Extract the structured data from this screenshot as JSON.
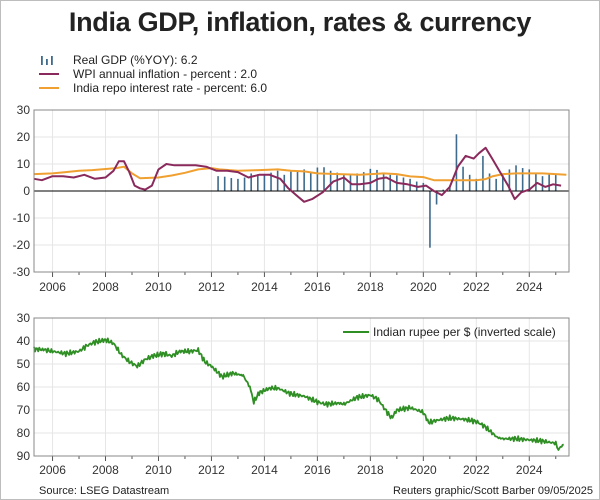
{
  "title": "India GDP, inflation, rates & currency",
  "source": "Source: LSEG Datastream",
  "credit": "Reuters graphic/Scott Barber 09/05/2025",
  "colors": {
    "gdp": "#3e6b8c",
    "wpi": "#8a2a5c",
    "repo": "#f0a030",
    "rupee": "#2f8f24",
    "zero": "#000000",
    "grid": "#e6e6e6"
  },
  "chart_data": [
    {
      "type": "bar+line",
      "panel": "top",
      "x_ticks": [
        "2006",
        "2008",
        "2010",
        "2012",
        "2014",
        "2016",
        "2018",
        "2020",
        "2022",
        "2024"
      ],
      "xlim": [
        2005.3,
        2025.5
      ],
      "ylim": [
        -30,
        30
      ],
      "y_ticks": [
        "30",
        "20",
        "10",
        "0",
        "-10",
        "-20",
        "-30"
      ],
      "grid": true,
      "legend_position": "top-left",
      "series": [
        {
          "name": "Real GDP (%YOY): 6.2",
          "kind": "bar",
          "x": [
            2012.25,
            2012.5,
            2012.75,
            2013.0,
            2013.25,
            2013.5,
            2013.75,
            2014.0,
            2014.25,
            2014.5,
            2014.75,
            2015.0,
            2015.25,
            2015.5,
            2015.75,
            2016.0,
            2016.25,
            2016.5,
            2016.75,
            2017.0,
            2017.25,
            2017.5,
            2017.75,
            2018.0,
            2018.25,
            2018.5,
            2018.75,
            2019.0,
            2019.25,
            2019.5,
            2019.75,
            2020.0,
            2020.25,
            2020.5,
            2020.75,
            2021.0,
            2021.25,
            2021.5,
            2021.75,
            2022.0,
            2022.25,
            2022.5,
            2022.75,
            2023.0,
            2023.25,
            2023.5,
            2023.75,
            2024.0,
            2024.25,
            2024.5,
            2024.75,
            2025.0
          ],
          "values": [
            5.5,
            5.3,
            4.8,
            4.5,
            5.0,
            6.5,
            6.2,
            5.8,
            6.8,
            7.5,
            6.0,
            7.2,
            7.6,
            8.0,
            7.2,
            8.7,
            8.8,
            7.5,
            6.8,
            6.0,
            5.8,
            6.5,
            7.0,
            8.2,
            7.8,
            6.8,
            6.0,
            5.8,
            5.0,
            4.5,
            3.5,
            3.0,
            -21.0,
            -5.0,
            0.5,
            2.0,
            21.0,
            9.0,
            6.0,
            4.5,
            13.0,
            6.5,
            4.5,
            6.0,
            8.0,
            9.5,
            8.5,
            8.0,
            6.8,
            5.5,
            6.2,
            6.2
          ]
        },
        {
          "name": "WPI annual inflation - percent : 2.0",
          "kind": "line",
          "x": [
            2005.3,
            2005.6,
            2006.0,
            2006.4,
            2006.8,
            2007.2,
            2007.6,
            2008.0,
            2008.3,
            2008.5,
            2008.7,
            2008.9,
            2009.1,
            2009.3,
            2009.5,
            2009.75,
            2010.0,
            2010.3,
            2010.6,
            2011.0,
            2011.4,
            2011.8,
            2012.2,
            2012.6,
            2013.0,
            2013.4,
            2013.8,
            2014.2,
            2014.6,
            2014.9,
            2015.2,
            2015.5,
            2015.8,
            2016.2,
            2016.6,
            2017.0,
            2017.3,
            2017.6,
            2018.0,
            2018.3,
            2018.6,
            2019.0,
            2019.4,
            2019.8,
            2020.1,
            2020.4,
            2020.7,
            2021.0,
            2021.3,
            2021.6,
            2021.9,
            2022.1,
            2022.35,
            2022.6,
            2022.9,
            2023.2,
            2023.45,
            2023.7,
            2024.0,
            2024.3,
            2024.6,
            2024.9,
            2025.2
          ],
          "values": [
            4.5,
            4.0,
            5.5,
            5.5,
            5.0,
            6.0,
            4.5,
            5.0,
            7.5,
            11.0,
            11.0,
            7.0,
            2.0,
            1.0,
            0.5,
            2.0,
            8.0,
            10.0,
            9.5,
            9.5,
            9.5,
            9.0,
            7.5,
            7.5,
            7.0,
            5.0,
            6.0,
            6.0,
            4.5,
            1.0,
            -1.5,
            -4.0,
            -3.0,
            -0.5,
            3.5,
            5.0,
            2.5,
            2.5,
            3.0,
            4.5,
            5.0,
            3.0,
            2.5,
            1.5,
            2.0,
            0.0,
            -1.5,
            1.5,
            9.0,
            13.0,
            12.0,
            14.0,
            16.0,
            12.0,
            7.0,
            2.0,
            -3.0,
            -0.5,
            0.5,
            3.0,
            1.5,
            2.5,
            2.0
          ]
        },
        {
          "name": "India repo interest rate - percent: 6.0",
          "kind": "line",
          "x": [
            2005.3,
            2006.0,
            2006.5,
            2007.0,
            2007.5,
            2008.4,
            2008.7,
            2009.0,
            2009.3,
            2010.0,
            2010.5,
            2011.0,
            2011.5,
            2012.0,
            2012.3,
            2013.0,
            2013.8,
            2014.5,
            2015.0,
            2015.5,
            2016.0,
            2016.8,
            2017.6,
            2018.5,
            2019.0,
            2019.5,
            2020.0,
            2020.4,
            2021.0,
            2022.0,
            2022.35,
            2022.6,
            2023.0,
            2023.5,
            2024.0,
            2024.5,
            2025.0,
            2025.4
          ],
          "values": [
            6.25,
            6.5,
            7.0,
            7.5,
            7.75,
            8.5,
            9.0,
            6.5,
            4.75,
            5.0,
            5.75,
            6.75,
            8.0,
            8.5,
            8.0,
            7.5,
            7.75,
            8.0,
            7.5,
            7.25,
            6.5,
            6.25,
            6.0,
            6.5,
            6.25,
            5.4,
            5.15,
            4.0,
            4.0,
            4.0,
            4.4,
            5.4,
            6.25,
            6.5,
            6.5,
            6.5,
            6.25,
            6.0
          ]
        }
      ]
    },
    {
      "type": "line",
      "panel": "bottom",
      "x_ticks": [
        "2006",
        "2008",
        "2010",
        "2012",
        "2014",
        "2016",
        "2018",
        "2020",
        "2022",
        "2024"
      ],
      "xlim": [
        2005.3,
        2025.5
      ],
      "ylim": [
        30,
        90
      ],
      "inverted": true,
      "y_ticks": [
        "30",
        "40",
        "50",
        "60",
        "70",
        "80",
        "90"
      ],
      "grid": true,
      "legend_position": "top-right",
      "series": [
        {
          "name": "Indian rupee per $ (inverted scale)",
          "x": [
            2005.3,
            2005.7,
            2006.0,
            2006.5,
            2007.0,
            2007.3,
            2007.6,
            2008.0,
            2008.3,
            2008.6,
            2008.9,
            2009.2,
            2009.5,
            2009.8,
            2010.2,
            2010.5,
            2010.8,
            2011.2,
            2011.5,
            2011.75,
            2012.0,
            2012.4,
            2012.8,
            2013.2,
            2013.45,
            2013.6,
            2013.8,
            2014.2,
            2014.5,
            2015.0,
            2015.5,
            2016.0,
            2016.3,
            2016.8,
            2017.0,
            2017.5,
            2018.0,
            2018.3,
            2018.6,
            2018.8,
            2019.0,
            2019.5,
            2020.0,
            2020.2,
            2020.5,
            2021.0,
            2021.5,
            2022.0,
            2022.3,
            2022.8,
            2023.0,
            2023.5,
            2024.0,
            2024.5,
            2025.0,
            2025.1,
            2025.3
          ],
          "values": [
            43.5,
            43.8,
            44.5,
            45.5,
            44.5,
            42.0,
            40.5,
            39.5,
            41.0,
            46.0,
            49.0,
            51.0,
            48.0,
            46.5,
            45.5,
            46.5,
            44.5,
            44.5,
            44.0,
            49.0,
            51.0,
            55.5,
            54.0,
            55.0,
            60.0,
            66.5,
            62.5,
            60.5,
            60.5,
            63.0,
            64.0,
            66.5,
            67.5,
            67.0,
            67.5,
            64.5,
            63.5,
            65.5,
            70.5,
            73.5,
            70.0,
            69.0,
            71.0,
            75.5,
            74.5,
            73.5,
            74.0,
            75.0,
            77.0,
            82.0,
            82.5,
            82.5,
            83.0,
            83.5,
            84.5,
            87.0,
            85.0
          ]
        }
      ]
    }
  ]
}
